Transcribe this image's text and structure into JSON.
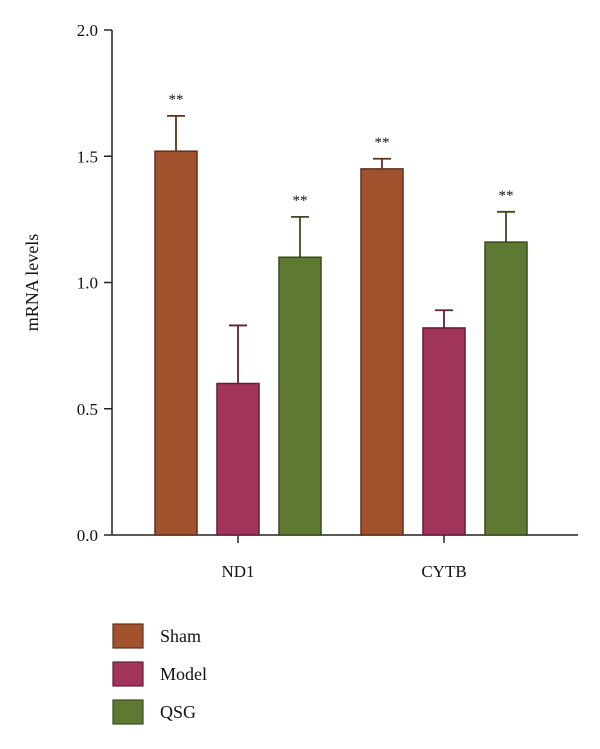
{
  "chart_data": {
    "type": "bar",
    "title": "",
    "xlabel": "",
    "ylabel": "mRNA levels",
    "ylim": [
      0,
      2.0
    ],
    "yticks": [
      "0.0",
      "0.5",
      "1.0",
      "1.5",
      "2.0"
    ],
    "categories": [
      "ND1",
      "CYTB"
    ],
    "grid": false,
    "legend_position": "bottom-left",
    "series": [
      {
        "name": "Sham",
        "color": "#a0522d",
        "values": [
          1.52,
          1.45
        ],
        "errors": [
          0.14,
          0.04
        ],
        "significance": [
          "**",
          "**"
        ]
      },
      {
        "name": "Model",
        "color": "#a0345a",
        "values": [
          0.6,
          0.82
        ],
        "errors": [
          0.23,
          0.07
        ],
        "significance": [
          "",
          ""
        ]
      },
      {
        "name": "QSG",
        "color": "#5e7a32",
        "values": [
          1.1,
          1.16
        ],
        "errors": [
          0.16,
          0.12
        ],
        "significance": [
          "**",
          "**"
        ]
      }
    ]
  }
}
